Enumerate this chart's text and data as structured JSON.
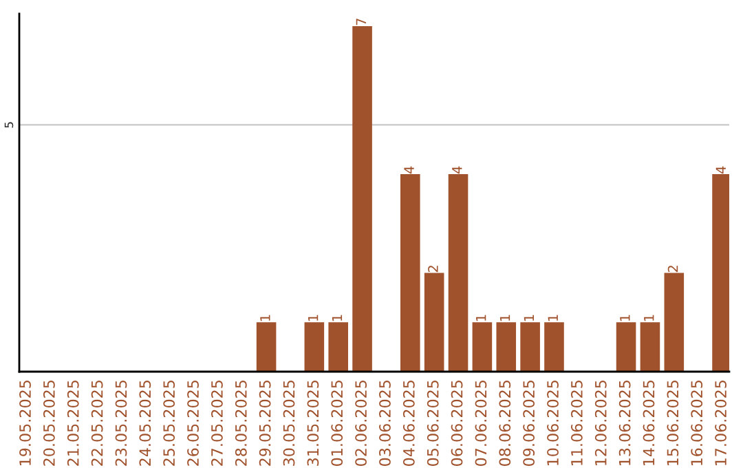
{
  "chart_data": {
    "type": "bar",
    "categories": [
      "19.05.2025",
      "20.05.2025",
      "21.05.2025",
      "22.05.2025",
      "23.05.2025",
      "24.05.2025",
      "25.05.2025",
      "26.05.2025",
      "27.05.2025",
      "28.05.2025",
      "29.05.2025",
      "30.05.2025",
      "31.05.2025",
      "01.06.2025",
      "02.06.2025",
      "03.06.2025",
      "04.06.2025",
      "05.06.2025",
      "06.06.2025",
      "07.06.2025",
      "08.06.2025",
      "09.06.2025",
      "10.06.2025",
      "11.06.2025",
      "12.06.2025",
      "13.06.2025",
      "14.06.2025",
      "15.06.2025",
      "16.06.2025",
      "17.06.2025"
    ],
    "values": [
      0,
      0,
      0,
      0,
      0,
      0,
      0,
      0,
      0,
      0,
      1,
      0,
      1,
      1,
      7,
      0,
      4,
      2,
      4,
      1,
      1,
      1,
      1,
      0,
      0,
      1,
      1,
      2,
      0,
      4
    ],
    "value_labels": [
      null,
      null,
      null,
      null,
      null,
      null,
      null,
      null,
      null,
      null,
      "1",
      null,
      "1",
      "1",
      "7",
      null,
      "4",
      "2",
      "4",
      "1",
      "1",
      "1",
      "1",
      null,
      null,
      "1",
      "1",
      "2",
      null,
      "4"
    ],
    "color": "#a0522d",
    "ylim": [
      0,
      7.25
    ],
    "yticks": [
      5
    ],
    "grid": "y",
    "legend": false
  }
}
